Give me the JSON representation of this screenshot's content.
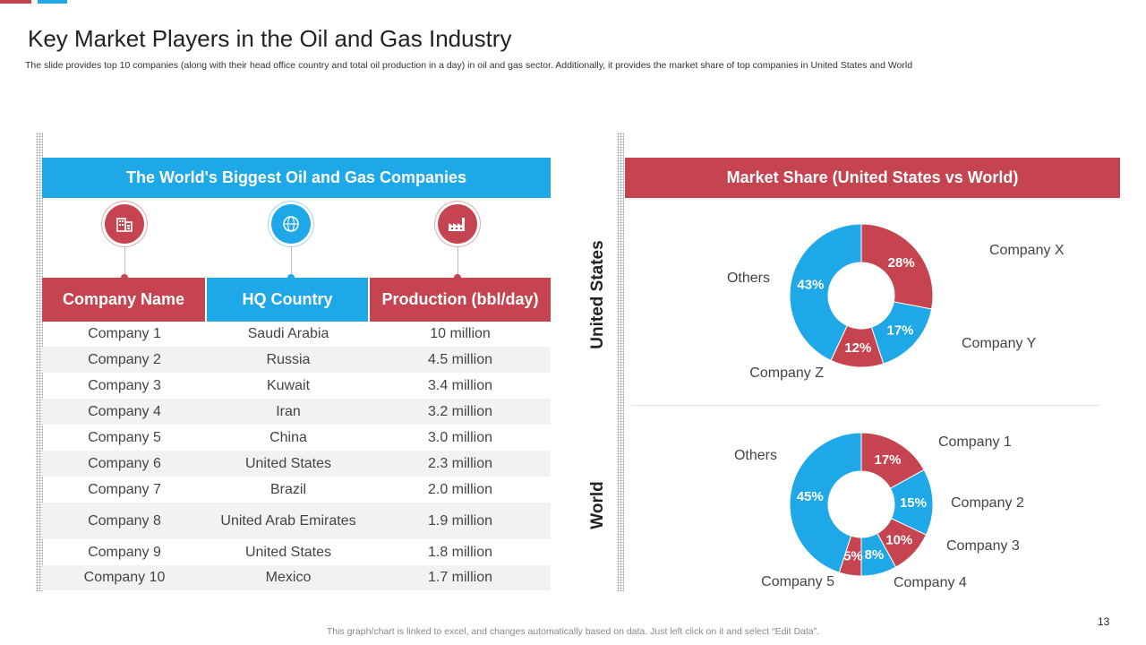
{
  "title": "Key Market Players in the Oil and Gas Industry",
  "subtitle": "The slide provides top 10 companies (along with their head office country and total oil production in a day) in oil and gas sector. Additionally, it provides the market share of top companies in United States and World",
  "table": {
    "header": "The World's Biggest Oil and Gas Companies",
    "icons": [
      "building-icon",
      "globe-icon",
      "factory-icon"
    ],
    "columns": [
      "Company Name",
      "HQ Country",
      "Production (bbl/day)"
    ],
    "rows": [
      [
        "Company 1",
        "Saudi Arabia",
        "10 million"
      ],
      [
        "Company 2",
        "Russia",
        "4.5 million"
      ],
      [
        "Company 3",
        "Kuwait",
        "3.4 million"
      ],
      [
        "Company 4",
        "Iran",
        "3.2 million"
      ],
      [
        "Company 5",
        "China",
        "3.0 million"
      ],
      [
        "Company 6",
        "United States",
        "2.3 million"
      ],
      [
        "Company 7",
        "Brazil",
        "2.0 million"
      ],
      [
        "Company 8",
        "United Arab Emirates",
        "1.9 million"
      ],
      [
        "Company 9",
        "United States",
        "1.8 million"
      ],
      [
        "Company 10",
        "Mexico",
        "1.7 million"
      ]
    ]
  },
  "market_share": {
    "header": "Market Share (United States vs World)",
    "us_label": "United States",
    "world_label": "World"
  },
  "colors": {
    "red": "#c6444f",
    "blue": "#1fa8e7"
  },
  "chart_data": [
    {
      "type": "pie",
      "categories": [
        "Company X",
        "Company Y",
        "Company Z",
        "Others"
      ],
      "values": [
        28,
        17,
        12,
        43
      ],
      "data_labels": [
        "28%",
        "17%",
        "12%",
        "43%"
      ],
      "colors": [
        "#c6444f",
        "#1fa8e7",
        "#c6444f",
        "#1fa8e7"
      ]
    },
    {
      "type": "pie",
      "categories": [
        "Company 1",
        "Company 2",
        "Company 3",
        "Company 4",
        "Company 5",
        "Others"
      ],
      "values": [
        17,
        15,
        10,
        8,
        5,
        45
      ],
      "data_labels": [
        "17%",
        "15%",
        "10%",
        "8%",
        "5%",
        "45%"
      ],
      "colors": [
        "#c6444f",
        "#1fa8e7",
        "#c6444f",
        "#1fa8e7",
        "#c6444f",
        "#1fa8e7"
      ]
    }
  ],
  "footer": "This graph/chart is linked to excel,  and changes automatically based on data. Just left click on it and select “Edit Data”.",
  "page_number": "13"
}
